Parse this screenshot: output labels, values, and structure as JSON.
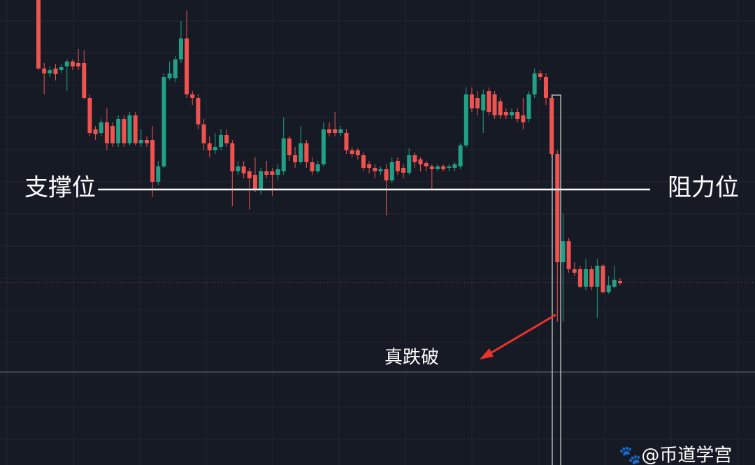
{
  "chart_data": {
    "type": "candlestick",
    "ylim": [
      0,
      665
    ],
    "up_color": "#22a085",
    "down_color": "#ef5350",
    "ohlc": [
      [
        665,
        665,
        565,
        567
      ],
      [
        567,
        575,
        530,
        560
      ],
      [
        560,
        570,
        555,
        565
      ],
      [
        567,
        573,
        550,
        559
      ],
      [
        565,
        573,
        560,
        569
      ],
      [
        570,
        580,
        535,
        577
      ],
      [
        577,
        580,
        565,
        570
      ],
      [
        575,
        595,
        565,
        570
      ],
      [
        575,
        593,
        523,
        525
      ],
      [
        525,
        530,
        470,
        475
      ],
      [
        480,
        485,
        465,
        473
      ],
      [
        475,
        495,
        470,
        490
      ],
      [
        490,
        510,
        450,
        460
      ],
      [
        485,
        490,
        455,
        460
      ],
      [
        460,
        500,
        455,
        495
      ],
      [
        495,
        500,
        455,
        460
      ],
      [
        460,
        505,
        457,
        500
      ],
      [
        500,
        505,
        457,
        460
      ],
      [
        460,
        480,
        455,
        465
      ],
      [
        465,
        470,
        455,
        460
      ],
      [
        465,
        485,
        383,
        405
      ],
      [
        405,
        435,
        400,
        427
      ],
      [
        427,
        560,
        425,
        555
      ],
      [
        553,
        577,
        550,
        560
      ],
      [
        553,
        585,
        547,
        580
      ],
      [
        580,
        635,
        575,
        610
      ],
      [
        610,
        650,
        525,
        530
      ],
      [
        530,
        535,
        515,
        525
      ],
      [
        525,
        530,
        480,
        487
      ],
      [
        487,
        495,
        450,
        460
      ],
      [
        460,
        470,
        440,
        450
      ],
      [
        450,
        475,
        445,
        455
      ],
      [
        455,
        480,
        450,
        472
      ],
      [
        472,
        480,
        455,
        460
      ],
      [
        460,
        465,
        370,
        420
      ],
      [
        420,
        435,
        415,
        427
      ],
      [
        427,
        435,
        410,
        417
      ],
      [
        420,
        425,
        365,
        410
      ],
      [
        415,
        440,
        390,
        395
      ],
      [
        393,
        425,
        387,
        420
      ],
      [
        420,
        435,
        410,
        415
      ],
      [
        420,
        425,
        385,
        415
      ],
      [
        415,
        430,
        407,
        423
      ],
      [
        420,
        497,
        415,
        467
      ],
      [
        467,
        470,
        435,
        443
      ],
      [
        443,
        455,
        425,
        433
      ],
      [
        433,
        485,
        430,
        460
      ],
      [
        460,
        465,
        425,
        433
      ],
      [
        433,
        440,
        415,
        420
      ],
      [
        420,
        435,
        417,
        430
      ],
      [
        430,
        490,
        427,
        480
      ],
      [
        480,
        490,
        470,
        475
      ],
      [
        480,
        505,
        470,
        475
      ],
      [
        475,
        485,
        470,
        480
      ],
      [
        475,
        480,
        445,
        450
      ],
      [
        450,
        455,
        440,
        445
      ],
      [
        450,
        453,
        437,
        443
      ],
      [
        443,
        447,
        420,
        425
      ],
      [
        430,
        435,
        417,
        425
      ],
      [
        425,
        430,
        410,
        420
      ],
      [
        420,
        427,
        415,
        423
      ],
      [
        423,
        430,
        357,
        407
      ],
      [
        407,
        440,
        403,
        433
      ],
      [
        435,
        440,
        415,
        420
      ],
      [
        425,
        430,
        410,
        418
      ],
      [
        418,
        453,
        415,
        443
      ],
      [
        443,
        447,
        425,
        433
      ],
      [
        437,
        440,
        420,
        430
      ],
      [
        432,
        435,
        420,
        427
      ],
      [
        427,
        430,
        393,
        423
      ],
      [
        423,
        430,
        420,
        427
      ],
      [
        427,
        430,
        420,
        423
      ],
      [
        425,
        430,
        420,
        427
      ],
      [
        425,
        433,
        420,
        430
      ],
      [
        427,
        460,
        423,
        457
      ],
      [
        457,
        540,
        453,
        530
      ],
      [
        530,
        540,
        505,
        510
      ],
      [
        525,
        535,
        500,
        510
      ],
      [
        507,
        537,
        475,
        530
      ],
      [
        535,
        540,
        500,
        505
      ],
      [
        530,
        535,
        495,
        500
      ],
      [
        520,
        525,
        495,
        500
      ],
      [
        505,
        510,
        495,
        500
      ],
      [
        500,
        510,
        495,
        505
      ],
      [
        505,
        510,
        490,
        495
      ],
      [
        500,
        525,
        480,
        490
      ],
      [
        495,
        535,
        490,
        530
      ],
      [
        530,
        567,
        525,
        560
      ],
      [
        560,
        565,
        550,
        555
      ],
      [
        555,
        560,
        515,
        525
      ],
      [
        525,
        530,
        440,
        445
      ],
      [
        445,
        450,
        205,
        290
      ],
      [
        290,
        360,
        205,
        320
      ],
      [
        320,
        325,
        275,
        280
      ],
      [
        280,
        290,
        270,
        275
      ],
      [
        280,
        285,
        253,
        255
      ],
      [
        255,
        295,
        250,
        280
      ],
      [
        280,
        285,
        250,
        255
      ],
      [
        255,
        295,
        210,
        285
      ],
      [
        285,
        287,
        245,
        247
      ],
      [
        247,
        270,
        245,
        257
      ],
      [
        255,
        285,
        253,
        265
      ],
      [
        263,
        267,
        257,
        260
      ]
    ],
    "level": 394,
    "support_label": "支撑位",
    "resistance_label": "阻力位",
    "current_price": 261,
    "annotation": "真跌破",
    "watermark": "🐾@币道学宫"
  }
}
